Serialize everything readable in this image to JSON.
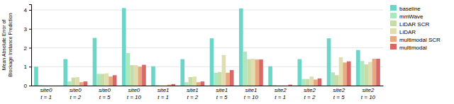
{
  "chart_data": {
    "type": "bar",
    "y_label": "Mean Absolute Error of\nBlockage Instance Prediction",
    "categories": [
      [
        "site0",
        "t = 1"
      ],
      [
        "site0",
        "t = 2"
      ],
      [
        "site0",
        "t = 5"
      ],
      [
        "site0",
        "t = 10"
      ],
      [
        "site1",
        "t = 1"
      ],
      [
        "site1",
        "t = 2"
      ],
      [
        "site1",
        "t = 5"
      ],
      [
        "site1",
        "t = 10"
      ],
      [
        "site2",
        "t = 1"
      ],
      [
        "site2",
        "t = 2"
      ],
      [
        "site2",
        "t = 5"
      ],
      [
        "site2",
        "t = 10"
      ]
    ],
    "series": [
      {
        "name": "baseline",
        "color": "#6dd5c8",
        "values": [
          1.0,
          1.4,
          2.52,
          4.1,
          1.02,
          1.4,
          2.5,
          4.08,
          1.02,
          1.4,
          2.5,
          1.88
        ]
      },
      {
        "name": "mmWave",
        "color": "#aae8c0",
        "values": [
          0.02,
          0.22,
          0.62,
          1.72,
          0.02,
          0.18,
          0.68,
          1.8,
          0.02,
          0.35,
          0.7,
          1.3
        ]
      },
      {
        "name": "LiDAR SCR",
        "color": "#c8dca8",
        "values": [
          0.0,
          0.42,
          0.62,
          1.08,
          0.0,
          0.45,
          0.72,
          1.4,
          0.0,
          0.35,
          0.55,
          1.12
        ]
      },
      {
        "name": "LiDAR",
        "color": "#e0ddb0",
        "values": [
          0.0,
          0.45,
          0.65,
          1.08,
          0.0,
          0.48,
          1.62,
          1.42,
          0.0,
          0.48,
          1.5,
          1.25
        ]
      },
      {
        "name": "multimodal SCR",
        "color": "#e8a880",
        "values": [
          0.0,
          0.18,
          0.48,
          1.0,
          0.05,
          0.18,
          0.68,
          1.38,
          0.0,
          0.32,
          1.22,
          1.42
        ]
      },
      {
        "name": "multimodal",
        "color": "#d86868",
        "values": [
          0.0,
          0.22,
          0.55,
          1.1,
          0.08,
          0.22,
          0.82,
          1.38,
          0.05,
          0.38,
          1.28,
          1.42
        ]
      }
    ],
    "ylim": [
      0,
      4.3
    ],
    "yticks": [
      0,
      1,
      2,
      3,
      4
    ],
    "grid": true,
    "legend": "upper right"
  }
}
